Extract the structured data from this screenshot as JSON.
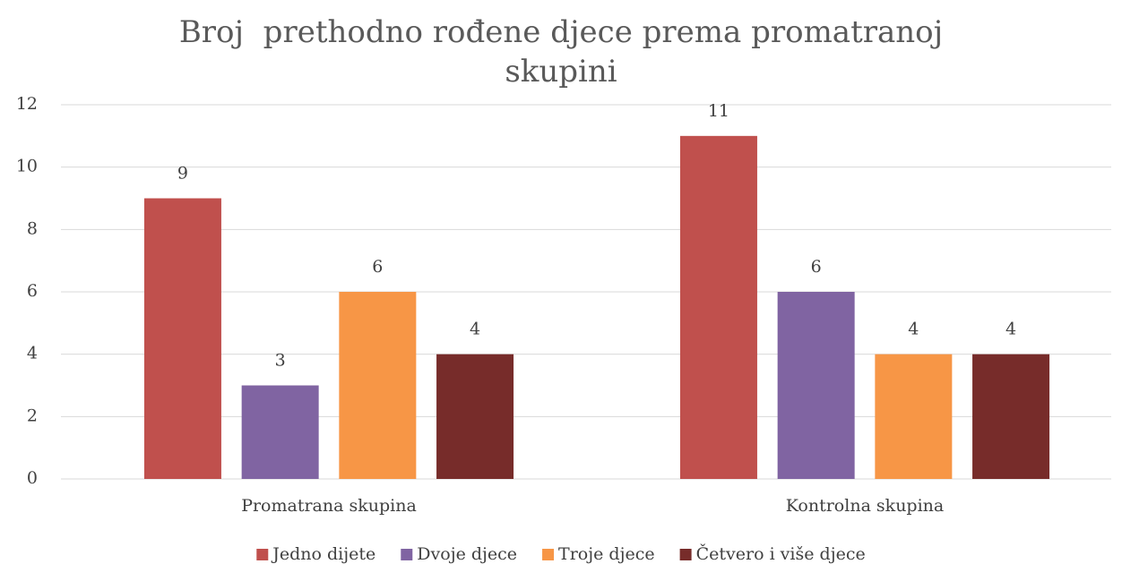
{
  "chart_data": {
    "type": "bar",
    "title": "Broj  prethodno rođene djece prema promatranoj skupini",
    "categories": [
      "Promatrana skupina",
      "Kontrolna skupina"
    ],
    "series": [
      {
        "name": "Jedno dijete",
        "color": "#c0504d",
        "values": [
          9,
          11
        ]
      },
      {
        "name": "Dvoje djece",
        "color": "#8064a2",
        "values": [
          3,
          6
        ]
      },
      {
        "name": "Troje djece",
        "color": "#f79646",
        "values": [
          6,
          4
        ]
      },
      {
        "name": "Četvero i više djece",
        "color": "#772c2a",
        "values": [
          4,
          4
        ]
      }
    ],
    "ylim": [
      0,
      12
    ],
    "yticks": [
      0,
      2,
      4,
      6,
      8,
      10,
      12
    ],
    "grid": true,
    "legend": "bottom"
  }
}
